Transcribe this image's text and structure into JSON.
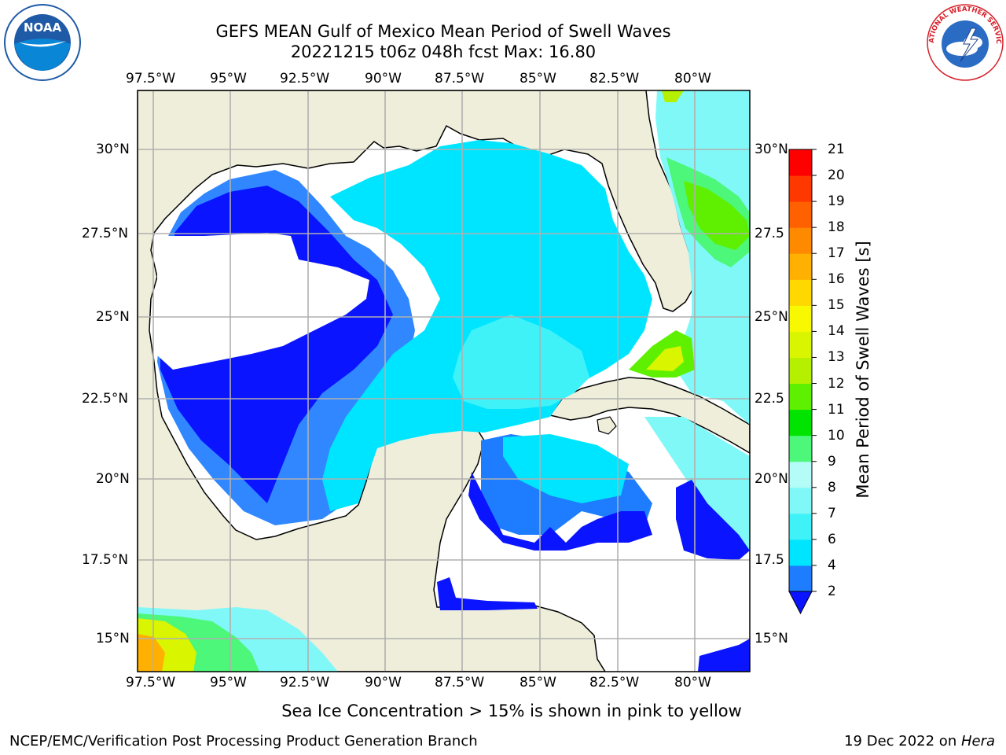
{
  "header": {
    "title": "GEFS MEAN Gulf of Mexico Mean Period of Swell Waves",
    "subtitle": "20221215 t06z 048h fcst   Max: 16.80"
  },
  "logos": {
    "left": "NOAA",
    "right": "NATIONAL WEATHER SERVICE"
  },
  "map": {
    "lon_labels": [
      "97.5°W",
      "95°W",
      "92.5°W",
      "90°W",
      "87.5°W",
      "85°W",
      "82.5°W",
      "80°W"
    ],
    "lat_labels_left": [
      "30°N",
      "27.5°N",
      "25°N",
      "22.5°N",
      "20°N",
      "17.5°N",
      "15°N"
    ],
    "lat_labels_right": [
      "30°N",
      "27.5",
      "25°N",
      "22.5",
      "20°N",
      "17.5",
      "15°N"
    ],
    "colors": {
      "land": "#efeedb",
      "grid": "#b0b0b0",
      "no_data": "#ffffff"
    }
  },
  "colorbar": {
    "label": "Mean Period of Swell Waves [s]",
    "ticks": [
      "2",
      "4",
      "6",
      "7",
      "8",
      "9",
      "10",
      "11",
      "12",
      "13",
      "14",
      "15",
      "16",
      "17",
      "18",
      "19",
      "20",
      "21"
    ],
    "colors": [
      "#1e7dff",
      "#00e5ff",
      "#3ff2f8",
      "#80f8f8",
      "#b4fcf8",
      "#4cf77a",
      "#00e400",
      "#5ef000",
      "#b4f000",
      "#d9f500",
      "#f8f800",
      "#ffd800",
      "#ffb000",
      "#ff8a00",
      "#ff6000",
      "#ff3800",
      "#ff0000"
    ],
    "extend_color": "#0a14ff"
  },
  "footer": {
    "note": "Sea Ice Concentration > 15% is shown in pink to yellow",
    "credit_left": "NCEP/EMC/Verification Post Processing Product Generation Branch",
    "credit_date": "19 Dec 2022 on ",
    "credit_system": "Hera"
  }
}
